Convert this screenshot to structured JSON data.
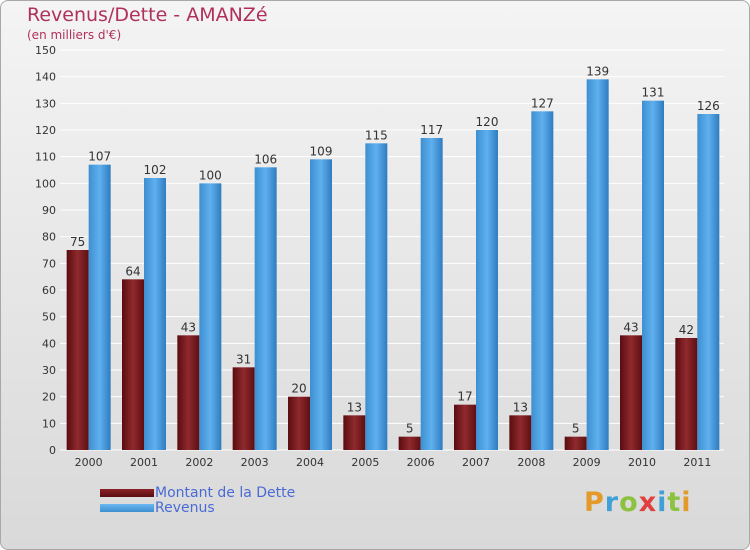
{
  "header": {
    "title": "Revenus/Dette - AMANZé",
    "subtitle": "(en milliers d'€)"
  },
  "logo": {
    "text": "Proxiti"
  },
  "colors": {
    "dette": "#7a1a1e",
    "revenus": "#4fa3e3",
    "grid": "#ffffff",
    "axis_text": "#333333"
  },
  "chart_data": {
    "type": "bar",
    "title": "Revenus/Dette - AMANZé",
    "subtitle": "(en milliers d'€)",
    "categories": [
      "2000",
      "2001",
      "2002",
      "2003",
      "2004",
      "2005",
      "2006",
      "2007",
      "2008",
      "2009",
      "2010",
      "2011"
    ],
    "series": [
      {
        "name": "Montant de la Dette",
        "values": [
          75,
          64,
          43,
          31,
          20,
          13,
          5,
          17,
          13,
          5,
          43,
          42
        ]
      },
      {
        "name": "Revenus",
        "values": [
          107,
          102,
          100,
          106,
          109,
          115,
          117,
          120,
          127,
          139,
          131,
          126
        ]
      }
    ],
    "ylim": [
      0,
      150
    ],
    "yticks": [
      0,
      10,
      20,
      30,
      40,
      50,
      60,
      70,
      80,
      90,
      100,
      110,
      120,
      130,
      140,
      150
    ],
    "grid": true,
    "legend_position": "bottom-left",
    "data_labels": true
  }
}
